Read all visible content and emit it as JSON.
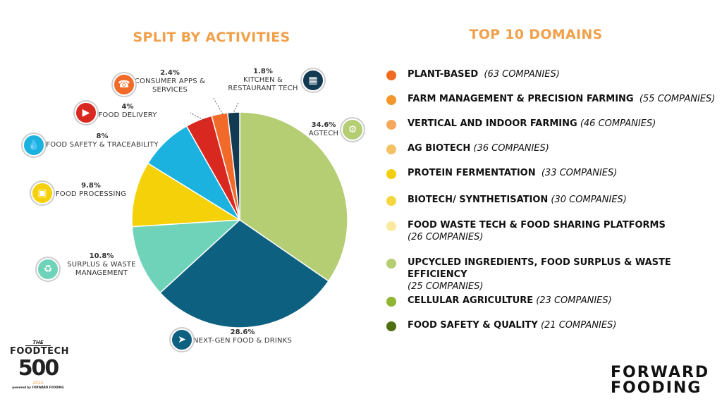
{
  "left_title": "SPLIT BY ACTIVITIES",
  "right_title": "TOP 10 DOMAINS",
  "chart_data": {
    "type": "pie",
    "title": "SPLIT BY ACTIVITIES",
    "slices": [
      {
        "label": "AGTECH",
        "pct_label": "34.6%",
        "value": 34.6,
        "color": "#b5cd73",
        "icon": "tractor-icon",
        "icon_color": "#b5cd73"
      },
      {
        "label": "NEXT-GEN FOOD & DRINKS",
        "pct_label": "28.6%",
        "value": 28.6,
        "color": "#0e6081",
        "icon": "rocket-icon",
        "icon_color": "#0e6081"
      },
      {
        "label": "SURPLUS & WASTE MANAGEMENT",
        "pct_label": "10.8%",
        "value": 10.8,
        "color": "#6ed3b9",
        "icon": "recycle-icon",
        "icon_color": "#6ed3b9"
      },
      {
        "label": "FOOD PROCESSING",
        "pct_label": "9.8%",
        "value": 9.8,
        "color": "#f5d10a",
        "icon": "factory-icon",
        "icon_color": "#f5d10a"
      },
      {
        "label": "FOOD SAFETY & TRACEABILITY",
        "pct_label": "8%",
        "value": 8,
        "color": "#1bb2e0",
        "icon": "drop-shield-icon",
        "icon_color": "#1bb2e0"
      },
      {
        "label": "FOOD DELIVERY",
        "pct_label": "4%",
        "value": 4,
        "color": "#d8281f",
        "icon": "delivery-truck-icon",
        "icon_color": "#d8281f"
      },
      {
        "label": "CONSUMER APPS & SERVICES",
        "pct_label": "2.4%",
        "value": 2.4,
        "color": "#f26a29",
        "icon": "phone-app-icon",
        "icon_color": "#f26a29"
      },
      {
        "label": "KITCHEN & RESTAURANT TECH",
        "pct_label": "1.8%",
        "value": 1.8,
        "color": "#123a52",
        "icon": "oven-icon",
        "icon_color": "#123a52"
      }
    ]
  },
  "domains": [
    {
      "name": "PLANT-BASED",
      "count": "(63 COMPANIES)",
      "color": "#f26a21"
    },
    {
      "name": "FARM MANAGEMENT & PRECISION FARMING",
      "count": "(55 COMPANIES)",
      "color": "#f5962b"
    },
    {
      "name": "VERTICAL AND INDOOR FARMING",
      "count": "(46 COMPANIES)",
      "color": "#f5a85b"
    },
    {
      "name": "AG BIOTECH",
      "count": "(36 COMPANIES)",
      "color": "#f4c164"
    },
    {
      "name": "PROTEIN FERMENTATION",
      "count": "(33 COMPANIES)",
      "color": "#f5ce0a"
    },
    {
      "name": "BIOTECH/ SYNTHETISATION",
      "count": "(30 COMPANIES)",
      "color": "#f5d63e"
    },
    {
      "name": "FOOD WASTE TECH & FOOD SHARING PLATFORMS",
      "count": "(26 COMPANIES)",
      "color": "#fbe9a0"
    },
    {
      "name": "UPCYCLED INGREDIENTS, FOOD SURPLUS & WASTE EFFICIENCY",
      "count": "(25 COMPANIES)",
      "color": "#b5cd73"
    },
    {
      "name": "CELLULAR AGRICULTURE",
      "count": "(23 COMPANIES)",
      "color": "#8fb532"
    },
    {
      "name": "FOOD SAFETY & QUALITY",
      "count": "(21 COMPANIES)",
      "color": "#4f6e12"
    }
  ],
  "logo_foodtech": {
    "the": "THE",
    "name": "FOODTECH",
    "number": "500",
    "year": "2022",
    "powered": "powered by FORWARD FOODING"
  },
  "logo_forward": {
    "line1": "FORWARD",
    "line2": "FOODING"
  }
}
